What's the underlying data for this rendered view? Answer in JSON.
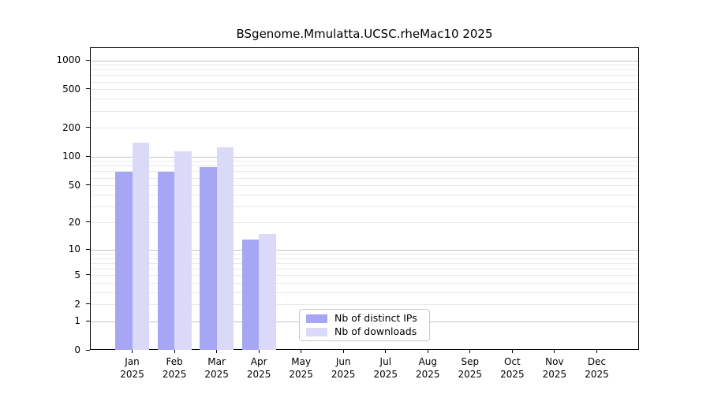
{
  "chart_data": {
    "type": "bar",
    "title": "BSgenome.Mmulatta.UCSC.rheMac10 2025",
    "categories": [
      "Jan",
      "Feb",
      "Mar",
      "Apr",
      "May",
      "Jun",
      "Jul",
      "Aug",
      "Sep",
      "Oct",
      "Nov",
      "Dec"
    ],
    "year": "2025",
    "series": [
      {
        "name": "Nb of distinct IPs",
        "color": "#a6a6f4",
        "values": [
          70,
          70,
          79,
          13,
          0,
          0,
          0,
          0,
          0,
          0,
          0,
          0
        ]
      },
      {
        "name": "Nb of downloads",
        "color": "#dadaf8",
        "values": [
          140,
          115,
          126,
          15,
          0,
          0,
          0,
          0,
          0,
          0,
          0,
          0
        ]
      }
    ],
    "yscale": "log1p",
    "yticks": [
      0,
      1,
      2,
      5,
      10,
      20,
      50,
      100,
      200,
      500,
      1000
    ],
    "ylim": [
      0,
      1350
    ],
    "xlabel": "",
    "ylabel": "",
    "grid": "horizontal",
    "legend_position": "lower-center-left"
  }
}
